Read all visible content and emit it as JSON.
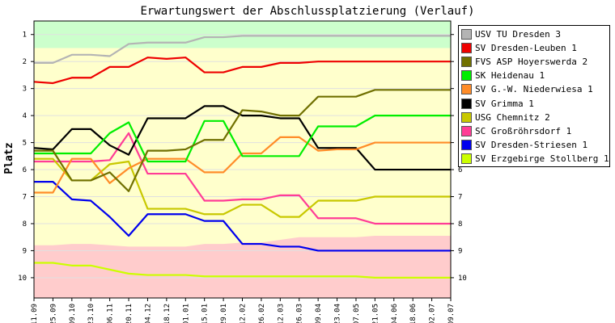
{
  "chart_data": {
    "type": "line",
    "title": "Erwartungswert der Abschlussplatzierung (Verlauf)",
    "ylabel": "Platz",
    "xlabel": "",
    "ylim": [
      10.75,
      0.5
    ],
    "y_ticks": [
      1,
      2,
      3,
      4,
      5,
      6,
      7,
      8,
      9,
      10
    ],
    "x": [
      "11.09",
      "25.09",
      "09.10",
      "23.10",
      "06.11",
      "20.11",
      "04.12",
      "18.12",
      "01.01",
      "15.01",
      "29.01",
      "12.02",
      "26.02",
      "12.03",
      "26.03",
      "09.04",
      "23.04",
      "07.05",
      "21.05",
      "04.06",
      "18.06",
      "02.07",
      "09.07"
    ],
    "grid": true,
    "legend_position": "right",
    "bands": {
      "green_upper": [
        1.5,
        1.5,
        1.5,
        1.5,
        1.5,
        1.5,
        1.5,
        1.5,
        1.5,
        1.5,
        1.5,
        1.5,
        1.5,
        1.5,
        1.5,
        1.5,
        1.5,
        1.5,
        1.5,
        1.5,
        1.5,
        1.5,
        1.5
      ],
      "red_lower": [
        8.8,
        8.8,
        8.75,
        8.75,
        8.8,
        8.85,
        8.85,
        8.85,
        8.85,
        8.75,
        8.75,
        8.7,
        8.7,
        8.6,
        8.5,
        8.5,
        8.5,
        8.5,
        8.45,
        8.45,
        8.45,
        8.45,
        8.45
      ]
    },
    "band_colors": {
      "green": "#ccffcc",
      "yellow": "#ffffcc",
      "red": "#ffcccc"
    },
    "series": [
      {
        "name": "USV TU Dresden 3",
        "color": "#b4b4b4",
        "values": [
          2.05,
          2.05,
          1.75,
          1.75,
          1.8,
          1.35,
          1.3,
          1.3,
          1.3,
          1.1,
          1.1,
          1.05,
          1.05,
          1.05,
          1.05,
          1.05,
          1.05,
          1.05,
          1.05,
          1.05,
          1.05,
          1.05,
          1.05
        ]
      },
      {
        "name": "SV Dresden-Leuben 1",
        "color": "#ee0000",
        "values": [
          2.75,
          2.8,
          2.6,
          2.6,
          2.2,
          2.2,
          1.85,
          1.9,
          1.85,
          2.4,
          2.4,
          2.2,
          2.2,
          2.05,
          2.05,
          2.0,
          2.0,
          2.0,
          2.0,
          2.0,
          2.0,
          2.0,
          2.0
        ]
      },
      {
        "name": "FVS ASP Hoyerswerda 2",
        "color": "#707000",
        "values": [
          5.3,
          5.3,
          6.4,
          6.4,
          6.1,
          6.8,
          5.3,
          5.3,
          5.25,
          4.9,
          4.9,
          3.8,
          3.85,
          4.0,
          4.0,
          3.3,
          3.3,
          3.3,
          3.05,
          3.05,
          3.05,
          3.05,
          3.05
        ]
      },
      {
        "name": "SK Heidenau 1",
        "color": "#00ee00",
        "values": [
          5.4,
          5.4,
          5.4,
          5.4,
          4.65,
          4.25,
          5.7,
          5.7,
          5.7,
          4.2,
          4.2,
          5.5,
          5.5,
          5.5,
          5.5,
          4.4,
          4.4,
          4.4,
          4.0,
          4.0,
          4.0,
          4.0,
          4.0
        ]
      },
      {
        "name": "SV G.-W. Niederwiesa 1",
        "color": "#ff8c28",
        "values": [
          6.85,
          6.85,
          5.6,
          5.6,
          6.5,
          5.95,
          5.6,
          5.6,
          5.6,
          6.1,
          6.1,
          5.4,
          5.4,
          4.8,
          4.8,
          5.3,
          5.25,
          5.25,
          5.0,
          5.0,
          5.0,
          5.0,
          5.0
        ]
      },
      {
        "name": "SV Grimma 1",
        "color": "#000000",
        "values": [
          5.2,
          5.25,
          4.5,
          4.5,
          5.1,
          5.45,
          4.1,
          4.1,
          4.1,
          3.65,
          3.65,
          4.0,
          4.0,
          4.1,
          4.1,
          5.2,
          5.2,
          5.2,
          6.0,
          6.0,
          6.0,
          6.0,
          6.0
        ]
      },
      {
        "name": "USG Chemnitz 2",
        "color": "#c8c800",
        "values": [
          5.6,
          5.6,
          6.4,
          6.4,
          5.8,
          5.7,
          7.45,
          7.45,
          7.45,
          7.65,
          7.65,
          7.3,
          7.3,
          7.75,
          7.75,
          7.15,
          7.15,
          7.15,
          7.0,
          7.0,
          7.0,
          7.0,
          7.0
        ]
      },
      {
        "name": "SC Großröhrsdorf 1",
        "color": "#ff3c96",
        "values": [
          5.7,
          5.7,
          5.7,
          5.7,
          5.65,
          4.65,
          6.15,
          6.15,
          6.15,
          7.15,
          7.15,
          7.1,
          7.1,
          6.95,
          6.95,
          7.8,
          7.8,
          7.8,
          8.0,
          8.0,
          8.0,
          8.0,
          8.0
        ]
      },
      {
        "name": "SV Dresden-Striesen 1",
        "color": "#0000ee",
        "values": [
          6.45,
          6.45,
          7.1,
          7.15,
          7.75,
          8.45,
          7.65,
          7.65,
          7.65,
          7.9,
          7.9,
          8.75,
          8.75,
          8.85,
          8.85,
          9.0,
          9.0,
          9.0,
          9.0,
          9.0,
          9.0,
          9.0,
          9.0
        ]
      },
      {
        "name": "SV Erzgebirge Stollberg 1",
        "color": "#ccff00",
        "values": [
          9.45,
          9.45,
          9.55,
          9.55,
          9.7,
          9.85,
          9.9,
          9.9,
          9.9,
          9.95,
          9.95,
          9.95,
          9.95,
          9.95,
          9.95,
          9.95,
          9.95,
          9.95,
          10.0,
          10.0,
          10.0,
          10.0,
          10.0
        ]
      }
    ]
  }
}
